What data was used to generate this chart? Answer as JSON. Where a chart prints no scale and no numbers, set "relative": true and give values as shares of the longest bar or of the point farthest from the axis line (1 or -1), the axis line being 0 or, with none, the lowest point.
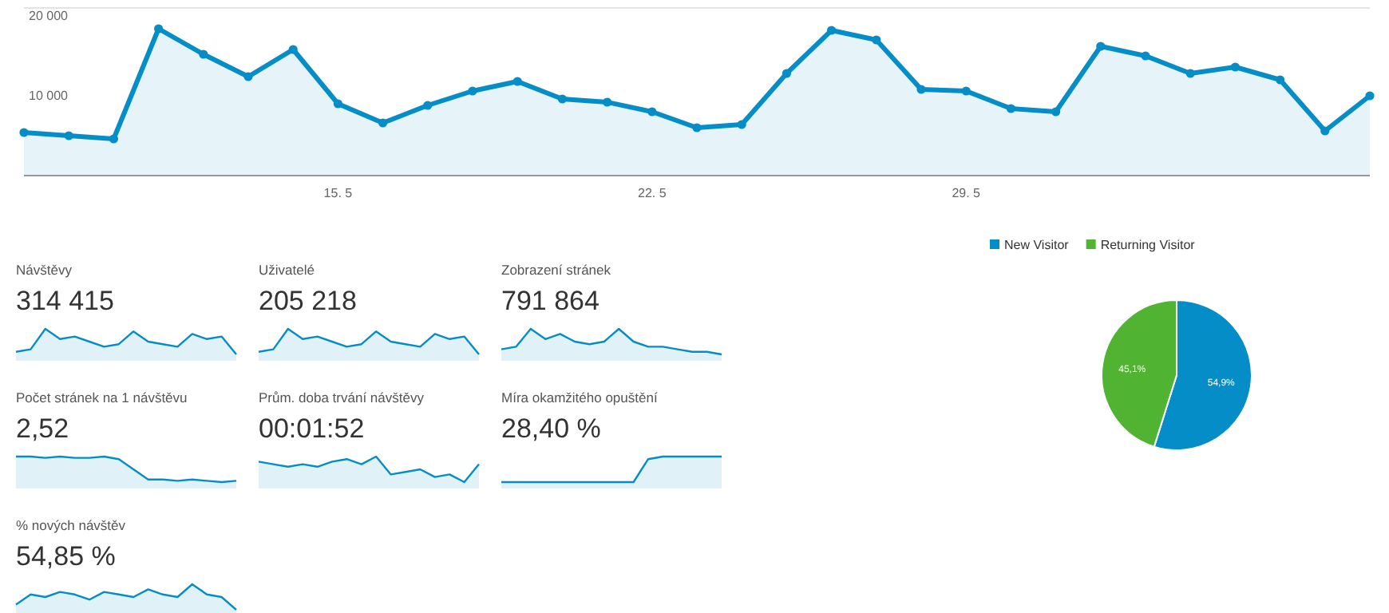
{
  "chart_data": [
    {
      "type": "area",
      "color": "#058dc7",
      "marker": "circle",
      "categories": [
        null,
        null,
        null,
        null,
        null,
        null,
        null,
        "15. 5",
        null,
        null,
        null,
        null,
        null,
        null,
        "22. 5",
        null,
        null,
        null,
        null,
        null,
        null,
        "29. 5",
        null,
        null,
        null,
        null,
        null,
        null,
        null,
        null,
        null
      ],
      "values": [
        5400,
        5000,
        4600,
        18400,
        15200,
        12400,
        15800,
        9000,
        6600,
        8800,
        10600,
        11800,
        9600,
        9200,
        8000,
        6000,
        6400,
        12800,
        18200,
        17000,
        10800,
        10600,
        8400,
        8000,
        16200,
        15000,
        12800,
        13600,
        12000,
        5600,
        10000
      ],
      "ylim": [
        0,
        21000
      ],
      "yticks": [
        {
          "value": 10000,
          "label": "10 000"
        },
        {
          "value": 20000,
          "label": "20 000"
        }
      ]
    },
    {
      "type": "area",
      "relative": true,
      "color": "#058dc7",
      "title": "Návštěvy",
      "subtitle": "314 415",
      "categories": [
        null,
        null,
        null,
        null,
        null,
        null,
        null,
        null,
        null,
        null,
        null,
        null,
        null,
        null,
        null,
        null
      ],
      "values": [
        0.1,
        0.2,
        1,
        0.6,
        0.7,
        0.5,
        0.3,
        0.4,
        0.9,
        0.5,
        0.4,
        0.3,
        0.8,
        0.6,
        0.7,
        0
      ]
    },
    {
      "type": "area",
      "relative": true,
      "color": "#058dc7",
      "title": "Uživatelé",
      "subtitle": "205 218",
      "categories": [
        null,
        null,
        null,
        null,
        null,
        null,
        null,
        null,
        null,
        null,
        null,
        null,
        null,
        null,
        null,
        null
      ],
      "values": [
        0.1,
        0.2,
        1,
        0.6,
        0.7,
        0.5,
        0.3,
        0.4,
        0.9,
        0.5,
        0.4,
        0.3,
        0.8,
        0.6,
        0.7,
        0
      ]
    },
    {
      "type": "area",
      "relative": true,
      "color": "#058dc7",
      "title": "Zobrazení stránek",
      "subtitle": "791 864",
      "categories": [
        null,
        null,
        null,
        null,
        null,
        null,
        null,
        null,
        null,
        null,
        null,
        null,
        null,
        null,
        null,
        null
      ],
      "values": [
        0.2,
        0.3,
        1,
        0.6,
        0.8,
        0.5,
        0.4,
        0.5,
        1,
        0.5,
        0.3,
        0.3,
        0.2,
        0.1,
        0.1,
        0
      ]
    },
    {
      "type": "area",
      "relative": true,
      "color": "#058dc7",
      "title": "Počet stránek na 1 návštěvu",
      "subtitle": "2,52",
      "categories": [
        null,
        null,
        null,
        null,
        null,
        null,
        null,
        null,
        null,
        null,
        null,
        null,
        null,
        null,
        null,
        null
      ],
      "values": [
        1,
        1,
        0.95,
        1,
        0.95,
        0.95,
        1,
        0.9,
        0.5,
        0.1,
        0.1,
        0.05,
        0.1,
        0.05,
        0,
        0.05
      ]
    },
    {
      "type": "area",
      "relative": true,
      "color": "#058dc7",
      "title": "Prům. doba trvání návštěvy",
      "subtitle": "00:01:52",
      "categories": [
        null,
        null,
        null,
        null,
        null,
        null,
        null,
        null,
        null,
        null,
        null,
        null,
        null,
        null,
        null,
        null
      ],
      "values": [
        0.8,
        0.7,
        0.6,
        0.7,
        0.6,
        0.8,
        0.9,
        0.7,
        1,
        0.3,
        0.4,
        0.5,
        0.2,
        0.3,
        0,
        0.7
      ]
    },
    {
      "type": "area",
      "relative": true,
      "color": "#058dc7",
      "title": "Míra okamžitého opuštění",
      "subtitle": "28,40 %",
      "categories": [
        null,
        null,
        null,
        null,
        null,
        null,
        null,
        null,
        null,
        null,
        null,
        null,
        null,
        null,
        null,
        null
      ],
      "values": [
        0,
        0,
        0,
        0,
        0,
        0,
        0,
        0,
        0,
        0,
        0.9,
        1,
        1,
        1,
        1,
        1
      ]
    },
    {
      "type": "area",
      "relative": true,
      "color": "#058dc7",
      "title": "% nových návštěv",
      "subtitle": "54,85 %",
      "categories": [
        null,
        null,
        null,
        null,
        null,
        null,
        null,
        null,
        null,
        null,
        null,
        null,
        null,
        null,
        null,
        null
      ],
      "values": [
        0.2,
        0.6,
        0.5,
        0.7,
        0.6,
        0.4,
        0.7,
        0.6,
        0.5,
        0.8,
        0.6,
        0.5,
        1,
        0.6,
        0.5,
        0
      ]
    },
    {
      "type": "pie",
      "legend": "top",
      "categories": [
        "New Visitor",
        "Returning Visitor"
      ],
      "values": [
        54.85,
        45.15
      ],
      "colors": [
        "#058dc7",
        "#50b432"
      ],
      "value_labels": [
        "54,9%",
        "45,1%"
      ]
    }
  ]
}
